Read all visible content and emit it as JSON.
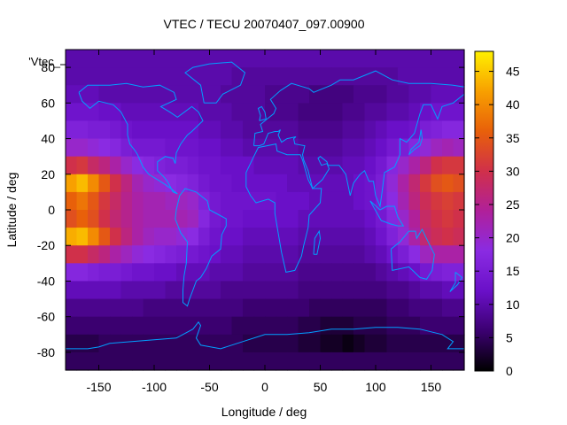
{
  "chart_data": {
    "type": "heatmap",
    "title": "VTEC / TECU 20070407_097.00900",
    "xlabel": "Longitude / deg",
    "ylabel": "Latitude / deg",
    "legend_key": "'Vtec_",
    "xlim": [
      -180,
      180
    ],
    "ylim": [
      -90,
      90
    ],
    "x_ticks": [
      -150,
      -100,
      -50,
      0,
      50,
      100,
      150
    ],
    "y_ticks": [
      -80,
      -60,
      -40,
      -20,
      0,
      20,
      40,
      60,
      80
    ],
    "colorbar": {
      "range": [
        0,
        48
      ],
      "ticks": [
        0,
        5,
        10,
        15,
        20,
        25,
        30,
        35,
        40,
        45
      ],
      "palette": [
        "#000000",
        "#3b0070",
        "#6a10c8",
        "#8a2be2",
        "#b0209a",
        "#d0304a",
        "#e8600a",
        "#f8a000",
        "#fff000"
      ]
    },
    "grid": false,
    "coastline_color": "#00a0ff",
    "grid_values": {
      "lat": [
        85,
        75,
        65,
        55,
        45,
        35,
        25,
        15,
        5,
        -5,
        -15,
        -25,
        -35,
        -45,
        -55,
        -65,
        -75,
        -85
      ],
      "lon": [
        -175,
        -165,
        -155,
        -145,
        -135,
        -125,
        -115,
        -105,
        -95,
        -85,
        -75,
        -65,
        -55,
        -45,
        -35,
        -25,
        -15,
        -5,
        5,
        15,
        25,
        35,
        45,
        55,
        65,
        75,
        85,
        95,
        105,
        115,
        125,
        135,
        145,
        155,
        165,
        175
      ],
      "vtec": [
        [
          10,
          10,
          10,
          10,
          10,
          10,
          10,
          10,
          10,
          10,
          10,
          10,
          10,
          10,
          10,
          10,
          10,
          10,
          10,
          10,
          10,
          10,
          10,
          10,
          10,
          10,
          10,
          10,
          10,
          10,
          10,
          10,
          10,
          10,
          10,
          10
        ],
        [
          10,
          10,
          10,
          10,
          10,
          10,
          10,
          10,
          10,
          10,
          10,
          10,
          10,
          10,
          10,
          9,
          9,
          9,
          9,
          9,
          9,
          9,
          9,
          9,
          9,
          9,
          9,
          9,
          9,
          9,
          10,
          10,
          10,
          10,
          10,
          10
        ],
        [
          11,
          11,
          11,
          10,
          10,
          10,
          10,
          10,
          10,
          10,
          10,
          10,
          10,
          10,
          9,
          9,
          9,
          9,
          8,
          8,
          8,
          8,
          7,
          7,
          7,
          7,
          8,
          8,
          8,
          9,
          9,
          10,
          10,
          11,
          11,
          11
        ],
        [
          13,
          13,
          13,
          12,
          12,
          11,
          11,
          11,
          11,
          11,
          11,
          11,
          10,
          10,
          10,
          9,
          9,
          9,
          8,
          8,
          8,
          7,
          7,
          7,
          7,
          8,
          8,
          9,
          9,
          10,
          10,
          11,
          12,
          13,
          13,
          13
        ],
        [
          16,
          16,
          15,
          15,
          14,
          13,
          12,
          12,
          12,
          12,
          12,
          12,
          11,
          11,
          10,
          10,
          9,
          9,
          9,
          9,
          9,
          8,
          8,
          8,
          8,
          9,
          9,
          10,
          11,
          12,
          12,
          13,
          15,
          16,
          17,
          17
        ],
        [
          20,
          20,
          19,
          18,
          17,
          15,
          14,
          14,
          14,
          13,
          13,
          13,
          12,
          12,
          11,
          11,
          10,
          10,
          10,
          10,
          10,
          9,
          9,
          9,
          9,
          10,
          10,
          11,
          12,
          14,
          15,
          17,
          19,
          21,
          22,
          21
        ],
        [
          30,
          31,
          28,
          26,
          23,
          20,
          18,
          17,
          16,
          15,
          15,
          14,
          13,
          13,
          12,
          12,
          12,
          11,
          11,
          11,
          11,
          10,
          10,
          10,
          10,
          11,
          11,
          12,
          14,
          17,
          20,
          23,
          26,
          30,
          31,
          31
        ],
        [
          42,
          44,
          40,
          35,
          30,
          26,
          22,
          20,
          19,
          18,
          17,
          16,
          14,
          13,
          13,
          12,
          12,
          12,
          12,
          12,
          11,
          11,
          11,
          11,
          11,
          11,
          12,
          13,
          15,
          19,
          23,
          27,
          31,
          34,
          35,
          34
        ],
        [
          36,
          38,
          35,
          31,
          28,
          25,
          23,
          22,
          22,
          21,
          21,
          20,
          16,
          14,
          13,
          13,
          13,
          13,
          13,
          12,
          12,
          12,
          11,
          11,
          11,
          11,
          12,
          13,
          15,
          18,
          22,
          26,
          29,
          31,
          32,
          31
        ],
        [
          34,
          36,
          34,
          30,
          27,
          25,
          23,
          22,
          22,
          22,
          22,
          21,
          17,
          14,
          13,
          13,
          12,
          12,
          12,
          12,
          12,
          11,
          11,
          11,
          11,
          11,
          11,
          12,
          14,
          17,
          20,
          24,
          28,
          30,
          31,
          30
        ],
        [
          43,
          44,
          40,
          35,
          30,
          26,
          23,
          21,
          20,
          20,
          19,
          18,
          15,
          13,
          12,
          12,
          11,
          11,
          11,
          11,
          11,
          10,
          10,
          10,
          10,
          10,
          10,
          11,
          13,
          16,
          19,
          23,
          27,
          29,
          30,
          29
        ],
        [
          30,
          30,
          28,
          26,
          23,
          21,
          19,
          18,
          17,
          16,
          15,
          14,
          13,
          12,
          11,
          11,
          10,
          10,
          10,
          10,
          10,
          9,
          9,
          9,
          9,
          9,
          9,
          10,
          11,
          13,
          15,
          18,
          21,
          23,
          23,
          23
        ],
        [
          17,
          17,
          16,
          15,
          15,
          14,
          13,
          13,
          12,
          12,
          11,
          11,
          11,
          10,
          10,
          10,
          9,
          9,
          9,
          9,
          9,
          8,
          8,
          8,
          8,
          8,
          8,
          8,
          9,
          10,
          11,
          12,
          14,
          15,
          16,
          16
        ],
        [
          11,
          11,
          11,
          11,
          11,
          10,
          10,
          10,
          10,
          9,
          9,
          9,
          9,
          9,
          8,
          8,
          8,
          8,
          8,
          8,
          8,
          7,
          7,
          7,
          7,
          7,
          7,
          7,
          7,
          8,
          8,
          9,
          10,
          10,
          11,
          11
        ],
        [
          8,
          8,
          8,
          8,
          8,
          8,
          8,
          7,
          7,
          7,
          7,
          7,
          7,
          7,
          7,
          7,
          6,
          6,
          6,
          6,
          6,
          6,
          5,
          5,
          5,
          5,
          5,
          5,
          5,
          6,
          6,
          7,
          7,
          7,
          8,
          8
        ],
        [
          6,
          6,
          6,
          6,
          6,
          6,
          6,
          6,
          6,
          6,
          6,
          6,
          6,
          6,
          6,
          5,
          5,
          5,
          5,
          5,
          5,
          4,
          4,
          3,
          3,
          3,
          4,
          4,
          4,
          5,
          5,
          5,
          6,
          6,
          6,
          6
        ],
        [
          4,
          4,
          4,
          5,
          5,
          5,
          5,
          5,
          5,
          5,
          5,
          5,
          5,
          5,
          5,
          5,
          4,
          4,
          4,
          4,
          4,
          3,
          3,
          2,
          2,
          1,
          2,
          3,
          3,
          4,
          4,
          4,
          4,
          4,
          4,
          4
        ],
        [
          5,
          5,
          5,
          5,
          5,
          5,
          5,
          5,
          5,
          5,
          5,
          5,
          5,
          5,
          5,
          5,
          5,
          5,
          5,
          5,
          5,
          5,
          5,
          5,
          5,
          5,
          5,
          5,
          5,
          5,
          5,
          5,
          5,
          5,
          5,
          5
        ]
      ]
    }
  }
}
